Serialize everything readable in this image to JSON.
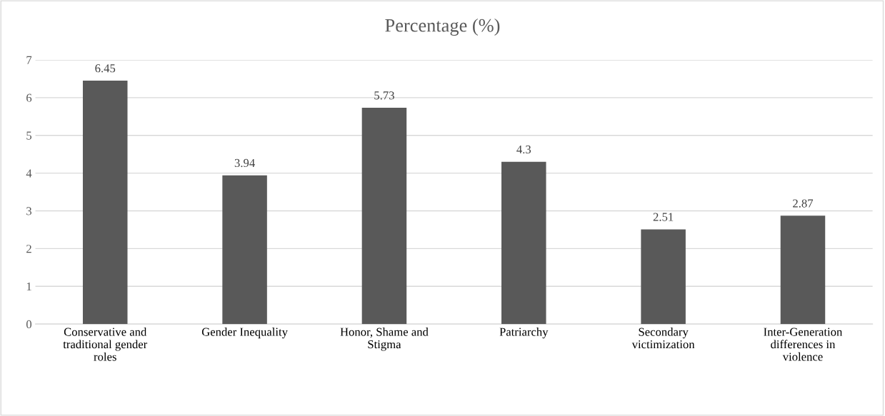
{
  "chart_data": {
    "type": "bar",
    "title": "Percentage (%)",
    "categories": [
      "Conservative and traditional gender roles",
      "Gender Inequality",
      "Honor, Shame and Stigma",
      "Patriarchy",
      "Secondary victimization",
      "Inter-Generation differences in violence"
    ],
    "values": [
      6.45,
      3.94,
      5.73,
      4.3,
      2.51,
      2.87
    ],
    "color": "#595959",
    "ylim": [
      0,
      7
    ],
    "yticks": [
      0,
      1,
      2,
      3,
      4,
      5,
      6,
      7
    ],
    "grid": "y",
    "data_labels": true
  }
}
